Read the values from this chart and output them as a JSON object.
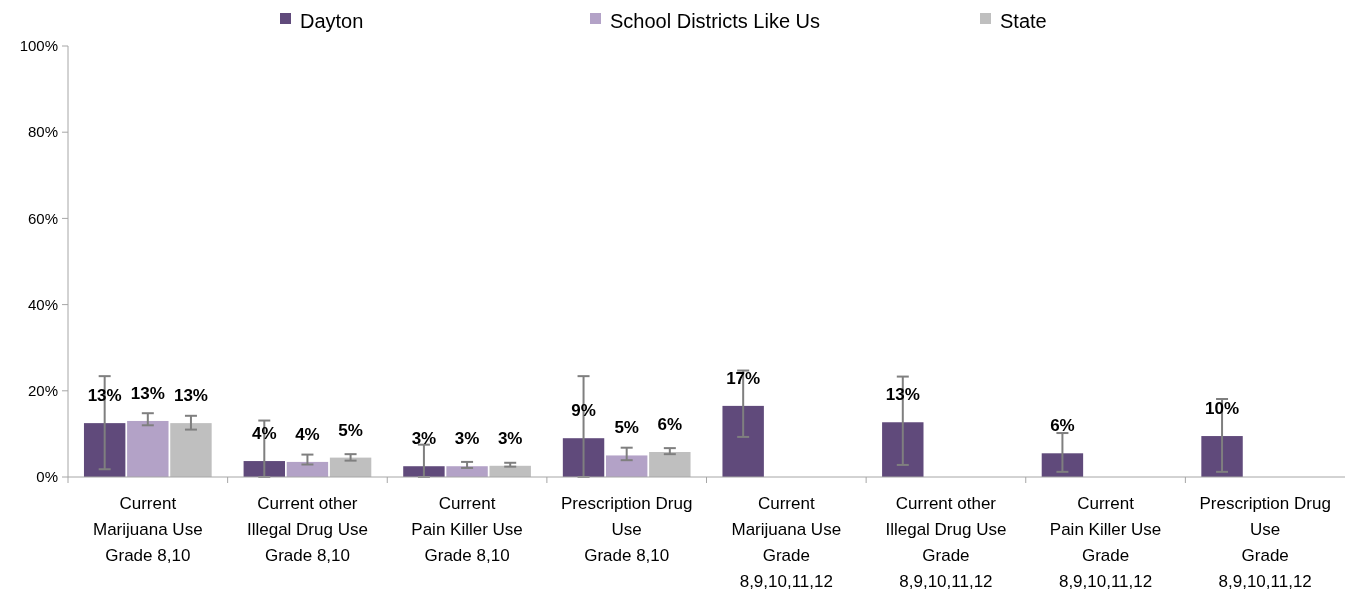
{
  "chart_data": {
    "type": "bar",
    "categories": [
      "Current\nMarijuana Use\nGrade 8,10",
      "Current other\nIllegal Drug Use\nGrade 8,10",
      "Current\nPain Killer Use\nGrade 8,10",
      "Prescription Drug\nUse\nGrade 8,10",
      "Current\nMarijuana Use\nGrade\n8,9,10,11,12",
      "Current other\nIllegal Drug Use\nGrade\n8,9,10,11,12",
      "Current\nPain Killer Use\nGrade\n8,9,10,11,12",
      "Prescription Drug\nUse\nGrade\n8,9,10,11,12"
    ],
    "series": [
      {
        "name": "Dayton",
        "color": "#604a7b",
        "values": [
          12.5,
          3.7,
          2.5,
          9.0,
          16.5,
          12.7,
          5.5,
          9.5
        ],
        "errors": [
          [
            1.8,
            23.4
          ],
          [
            0,
            13.1
          ],
          [
            0,
            7.5
          ],
          [
            0,
            23.4
          ],
          [
            9.3,
            24.7
          ],
          [
            2.8,
            23.3
          ],
          [
            1.2,
            10.2
          ],
          [
            1.2,
            18.1
          ]
        ],
        "value_labels": [
          "13%",
          "4%",
          "3%",
          "9%",
          "17%",
          "13%",
          "6%",
          "10%"
        ]
      },
      {
        "name": "School Districts Like Us",
        "color": "#b3a2c7",
        "values": [
          13.0,
          3.5,
          2.5,
          5.0,
          null,
          null,
          null,
          null
        ],
        "errors": [
          [
            12.0,
            14.8
          ],
          [
            2.9,
            5.2
          ],
          [
            2.1,
            3.5
          ],
          [
            3.9,
            6.8
          ],
          null,
          null,
          null,
          null
        ],
        "value_labels": [
          "13%",
          "4%",
          "3%",
          "5%",
          null,
          null,
          null,
          null
        ]
      },
      {
        "name": "State",
        "color": "#bfbfbf",
        "values": [
          12.5,
          4.5,
          2.6,
          5.8,
          null,
          null,
          null,
          null
        ],
        "errors": [
          [
            11.0,
            14.2
          ],
          [
            3.8,
            5.3
          ],
          [
            2.4,
            3.3
          ],
          [
            5.3,
            6.7
          ],
          null,
          null,
          null,
          null
        ],
        "value_labels": [
          "13%",
          "5%",
          "3%",
          "6%",
          null,
          null,
          null,
          null
        ]
      }
    ],
    "ylim": [
      0,
      100
    ],
    "yticks": [
      {
        "value": 0,
        "label": "0%"
      },
      {
        "value": 20,
        "label": "20%"
      },
      {
        "value": 40,
        "label": "40%"
      },
      {
        "value": 60,
        "label": "60%"
      },
      {
        "value": 80,
        "label": "80%"
      },
      {
        "value": 100,
        "label": "100%"
      }
    ],
    "grid": false,
    "legend": "top"
  }
}
